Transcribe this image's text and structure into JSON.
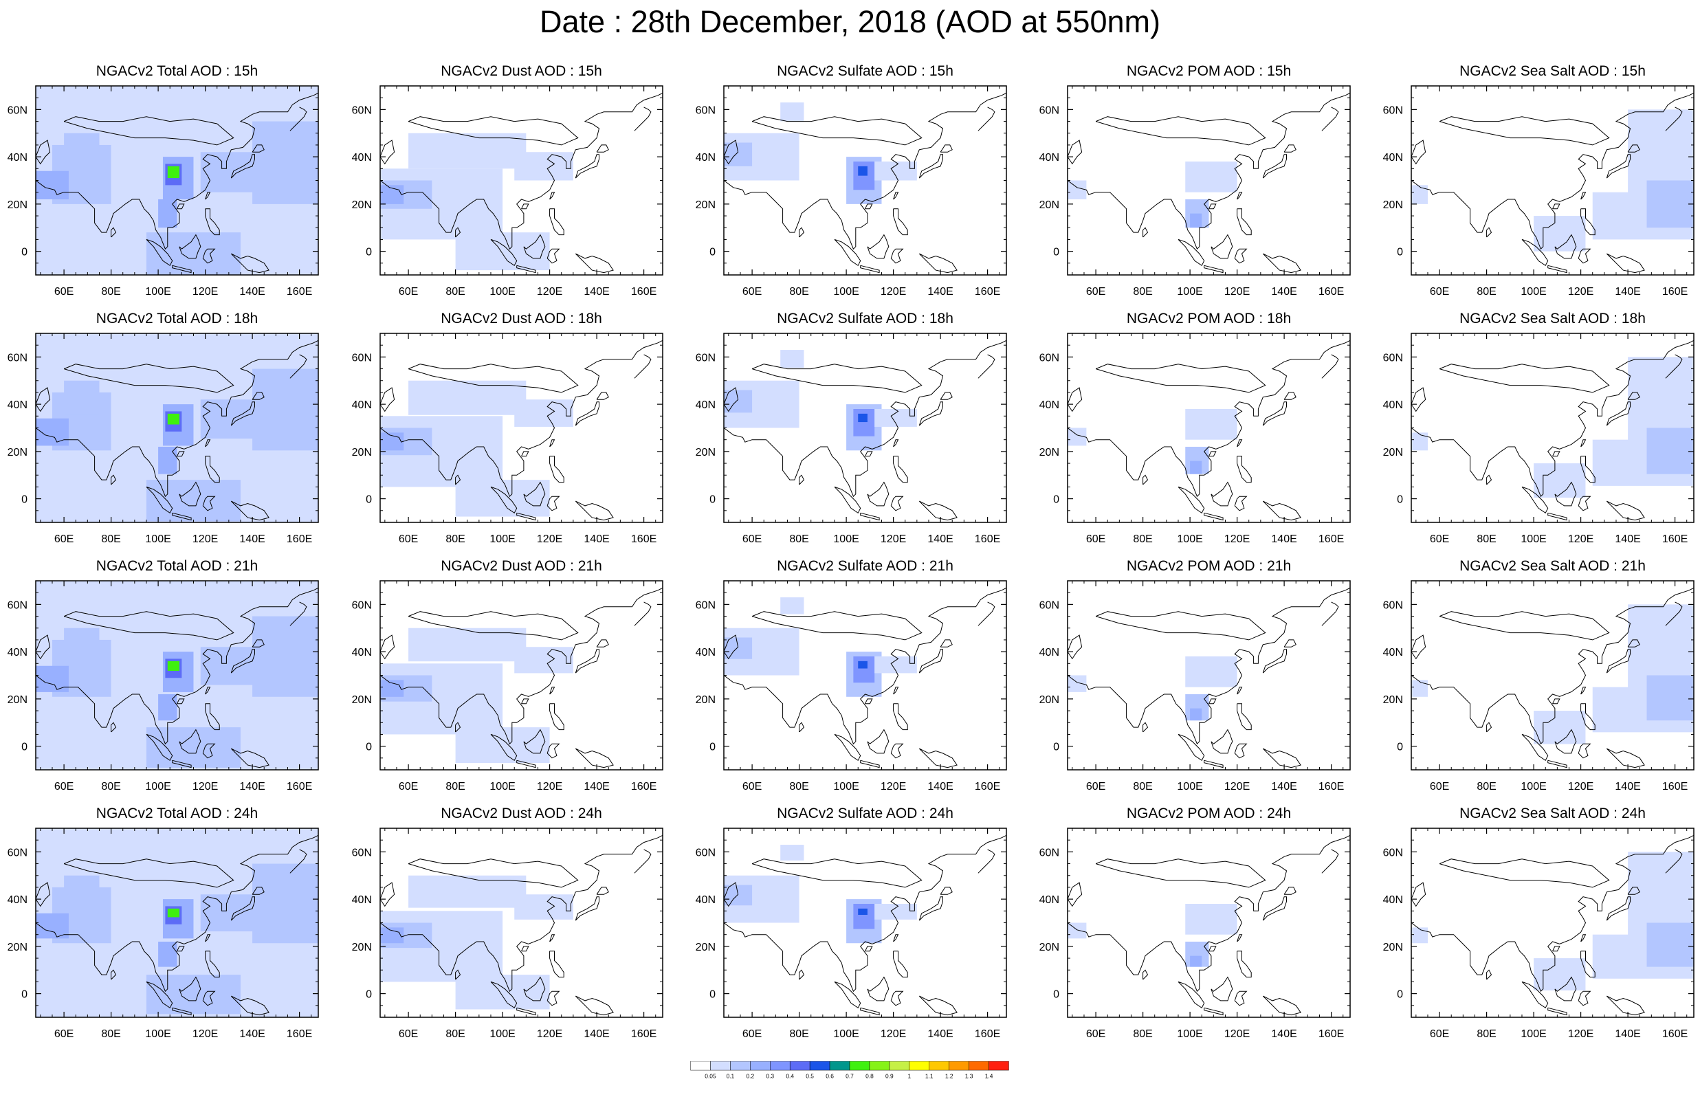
{
  "title": "Date : 28th December, 2018 (AOD at 550nm)",
  "chart_data": {
    "type": "heatmap",
    "variable": "AOD at 550nm",
    "date": "28th December, 2018",
    "x_ticks": [
      "60E",
      "80E",
      "100E",
      "120E",
      "140E",
      "160E"
    ],
    "x_tick_values": [
      60,
      80,
      100,
      120,
      140,
      160
    ],
    "y_ticks": [
      "0",
      "20N",
      "40N",
      "60N"
    ],
    "y_tick_values": [
      0,
      20,
      40,
      60
    ],
    "xlim": [
      48,
      168
    ],
    "ylim": [
      -10,
      70
    ],
    "colorbar": {
      "levels": [
        "0.05",
        "0.1",
        "0.2",
        "0.3",
        "0.4",
        "0.5",
        "0.6",
        "0.7",
        "0.8",
        "0.9",
        "1",
        "1.1",
        "1.2",
        "1.3",
        "1.4"
      ],
      "colors": [
        "#ffffff",
        "#d3deff",
        "#b3c6ff",
        "#98b0ff",
        "#7f95ff",
        "#5d6cf6",
        "#1b55e8",
        "#00968c",
        "#3ff00f",
        "#86f217",
        "#c6f046",
        "#ffff00",
        "#ffc800",
        "#ff9a00",
        "#ff6a00",
        "#ff2010"
      ]
    },
    "rows": [
      {
        "hour": "15h",
        "titles": [
          "NGACv2 Total AOD : 15h",
          "NGACv2 Dust AOD : 15h",
          "NGACv2 Sulfate AOD : 15h",
          "NGACv2 POM AOD : 15h",
          "NGACv2 Sea Salt AOD : 15h"
        ]
      },
      {
        "hour": "18h",
        "titles": [
          "NGACv2 Total AOD : 18h",
          "NGACv2 Dust AOD : 18h",
          "NGACv2 Sulfate AOD : 18h",
          "NGACv2 POM AOD : 18h",
          "NGACv2 Sea Salt AOD : 18h"
        ]
      },
      {
        "hour": "21h",
        "titles": [
          "NGACv2 Total AOD : 21h",
          "NGACv2 Dust AOD : 21h",
          "NGACv2 Sulfate AOD : 21h",
          "NGACv2 POM AOD : 21h",
          "NGACv2 Sea Salt AOD : 21h"
        ]
      },
      {
        "hour": "24h",
        "titles": [
          "NGACv2 Total AOD : 24h",
          "NGACv2 Dust AOD : 24h",
          "NGACv2 Sulfate AOD : 24h",
          "NGACv2 POM AOD : 24h",
          "NGACv2 Sea Salt  AOD : 24h"
        ]
      }
    ],
    "species": [
      "Total",
      "Dust",
      "Sulfate",
      "POM",
      "Sea Salt"
    ],
    "fields": {
      "Total": [
        {
          "lon": [
            48,
            168
          ],
          "lat": [
            -10,
            70
          ],
          "aod": 0.07
        },
        {
          "lon": [
            55,
            80
          ],
          "lat": [
            20,
            45
          ],
          "aod": 0.15
        },
        {
          "lon": [
            48,
            62
          ],
          "lat": [
            22,
            34
          ],
          "aod": 0.25
        },
        {
          "lon": [
            60,
            75
          ],
          "lat": [
            35,
            50
          ],
          "aod": 0.15
        },
        {
          "lon": [
            118,
            148
          ],
          "lat": [
            25,
            42
          ],
          "aod": 0.15
        },
        {
          "lon": [
            140,
            168
          ],
          "lat": [
            20,
            55
          ],
          "aod": 0.15
        },
        {
          "lon": [
            102,
            115
          ],
          "lat": [
            22,
            40
          ],
          "aod": 0.25
        },
        {
          "lon": [
            103,
            110
          ],
          "lat": [
            28,
            37
          ],
          "aod": 0.45
        },
        {
          "lon": [
            104,
            109
          ],
          "lat": [
            31,
            36
          ],
          "aod": 0.75
        },
        {
          "lon": [
            100,
            108
          ],
          "lat": [
            10,
            22
          ],
          "aod": 0.2
        },
        {
          "lon": [
            95,
            135
          ],
          "lat": [
            -10,
            8
          ],
          "aod": 0.12
        }
      ],
      "Dust": [
        {
          "lon": [
            48,
            100
          ],
          "lat": [
            5,
            35
          ],
          "aod": 0.07
        },
        {
          "lon": [
            48,
            70
          ],
          "lat": [
            18,
            30
          ],
          "aod": 0.15
        },
        {
          "lon": [
            48,
            58
          ],
          "lat": [
            20,
            28
          ],
          "aod": 0.25
        },
        {
          "lon": [
            60,
            110
          ],
          "lat": [
            35,
            50
          ],
          "aod": 0.07
        },
        {
          "lon": [
            105,
            130
          ],
          "lat": [
            30,
            42
          ],
          "aod": 0.07
        },
        {
          "lon": [
            80,
            120
          ],
          "lat": [
            -8,
            8
          ],
          "aod": 0.07
        }
      ],
      "Sulfate": [
        {
          "lon": [
            48,
            80
          ],
          "lat": [
            30,
            50
          ],
          "aod": 0.07
        },
        {
          "lon": [
            48,
            60
          ],
          "lat": [
            36,
            46
          ],
          "aod": 0.15
        },
        {
          "lon": [
            72,
            82
          ],
          "lat": [
            55,
            63
          ],
          "aod": 0.07
        },
        {
          "lon": [
            100,
            115
          ],
          "lat": [
            20,
            40
          ],
          "aod": 0.15
        },
        {
          "lon": [
            103,
            112
          ],
          "lat": [
            26,
            38
          ],
          "aod": 0.3
        },
        {
          "lon": [
            105,
            109
          ],
          "lat": [
            32,
            36
          ],
          "aod": 0.55
        },
        {
          "lon": [
            112,
            130
          ],
          "lat": [
            30,
            38
          ],
          "aod": 0.07
        }
      ],
      "POM": [
        {
          "lon": [
            98,
            120
          ],
          "lat": [
            25,
            38
          ],
          "aod": 0.07
        },
        {
          "lon": [
            98,
            108
          ],
          "lat": [
            10,
            22
          ],
          "aod": 0.15
        },
        {
          "lon": [
            100,
            105
          ],
          "lat": [
            10,
            16
          ],
          "aod": 0.25
        },
        {
          "lon": [
            48,
            56
          ],
          "lat": [
            22,
            30
          ],
          "aod": 0.07
        }
      ],
      "Sea Salt": [
        {
          "lon": [
            140,
            168
          ],
          "lat": [
            20,
            60
          ],
          "aod": 0.07
        },
        {
          "lon": [
            125,
            168
          ],
          "lat": [
            5,
            25
          ],
          "aod": 0.07
        },
        {
          "lon": [
            148,
            168
          ],
          "lat": [
            10,
            30
          ],
          "aod": 0.15
        },
        {
          "lon": [
            100,
            122
          ],
          "lat": [
            0,
            15
          ],
          "aod": 0.07
        },
        {
          "lon": [
            48,
            55
          ],
          "lat": [
            20,
            28
          ],
          "aod": 0.07
        }
      ]
    }
  }
}
